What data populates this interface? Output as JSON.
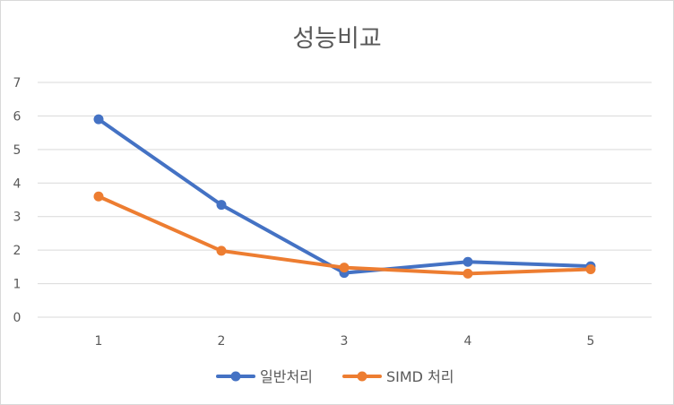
{
  "chart_data": {
    "type": "line",
    "title": "성능비교",
    "xlabel": "",
    "ylabel": "",
    "categories": [
      "1",
      "2",
      "3",
      "4",
      "5"
    ],
    "ylim": [
      0,
      7
    ],
    "yticks": [
      0,
      1,
      2,
      3,
      4,
      5,
      6,
      7
    ],
    "grid": true,
    "legend_position": "bottom",
    "series": [
      {
        "name": "일반처리",
        "color": "#4472C4",
        "values": [
          5.9,
          3.35,
          1.32,
          1.65,
          1.52
        ]
      },
      {
        "name": "SIMD 처리",
        "color": "#ED7D31",
        "values": [
          3.6,
          1.98,
          1.48,
          1.3,
          1.43
        ]
      }
    ]
  }
}
